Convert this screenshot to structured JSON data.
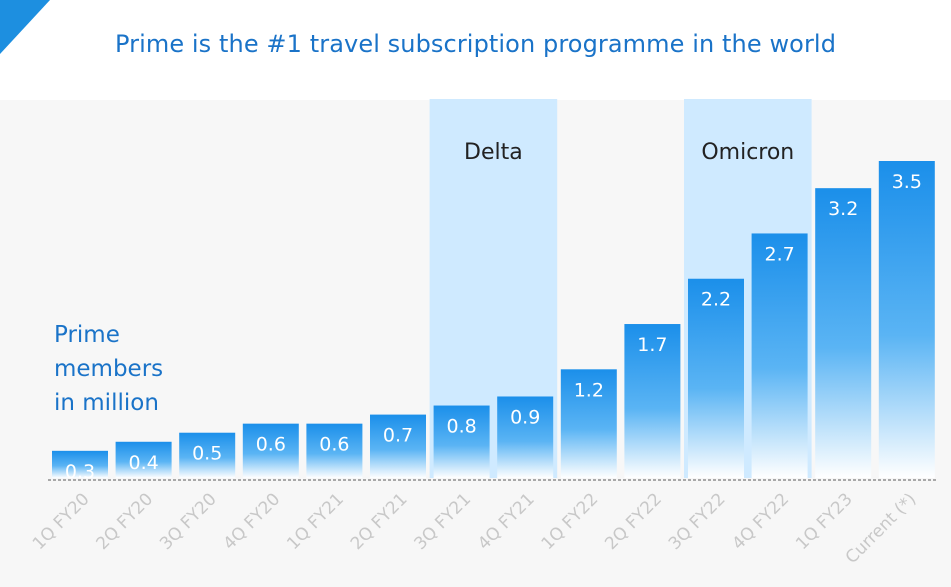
{
  "title": "Prime is the #1 travel subscription programme in the world",
  "chart_data": {
    "type": "bar",
    "title": "Prime is the #1 travel subscription programme in the world",
    "ylabel_lines": [
      "Prime",
      "members",
      "in million"
    ],
    "categories": [
      "1Q FY20",
      "2Q FY20",
      "3Q FY20",
      "4Q FY20",
      "1Q FY21",
      "2Q FY21",
      "3Q FY21",
      "4Q FY21",
      "1Q FY22",
      "2Q FY22",
      "3Q FY22",
      "4Q FY22",
      "1Q FY23",
      "Current (*)"
    ],
    "values": [
      0.3,
      0.4,
      0.5,
      0.6,
      0.6,
      0.7,
      0.8,
      0.9,
      1.2,
      1.7,
      2.2,
      2.7,
      3.2,
      3.5
    ],
    "value_labels": [
      "0.3",
      "0.4",
      "0.5",
      "0.6",
      "0.6",
      "0.7",
      "0.8",
      "0.9",
      "1.2",
      "1.7",
      "2.2",
      "2.7",
      "3.2",
      "3.5"
    ],
    "ylim": [
      0,
      3.5
    ],
    "highlight_bands": [
      {
        "label": "Delta",
        "category": "3Q FY21"
      },
      {
        "label": "Omicron",
        "category": "3Q FY22"
      }
    ],
    "colors": {
      "bar_top": "#1b8fea",
      "bar_bottom": "#ffffff",
      "band": "#cfeaff",
      "title": "#1a73c8"
    }
  }
}
